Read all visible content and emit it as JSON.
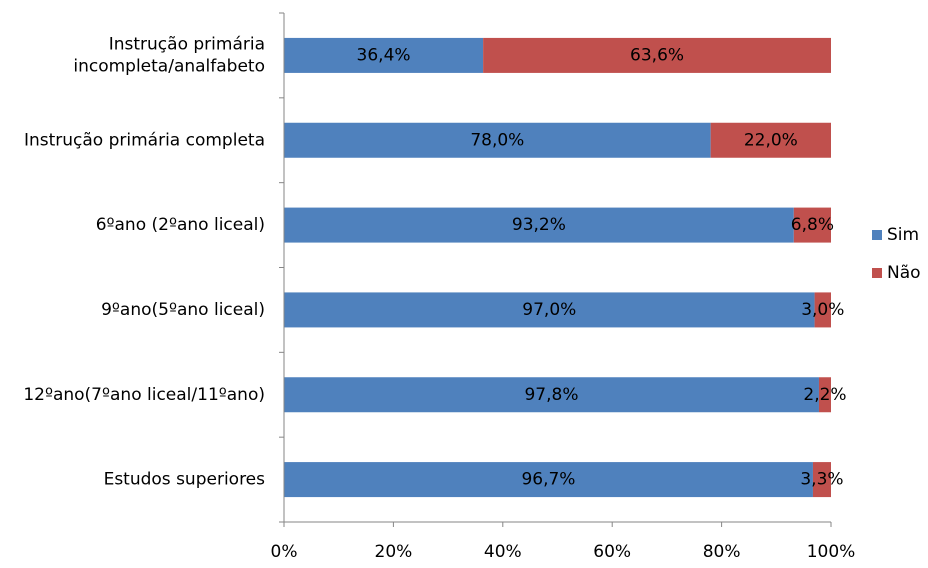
{
  "chart_data": {
    "type": "bar",
    "orientation": "horizontal",
    "stacked": "percent",
    "categories": [
      [
        "Instrução primária",
        "incompleta/analfabeto"
      ],
      [
        "Instrução primária completa"
      ],
      [
        "6ºano (2ºano liceal)"
      ],
      [
        "9ºano(5ºano liceal)"
      ],
      [
        "12ºano(7ºano liceal/11ºano)"
      ],
      [
        "Estudos superiores"
      ]
    ],
    "series": [
      {
        "name": "Sim",
        "color": "#4F81BD",
        "values": [
          36.4,
          78.0,
          93.2,
          97.0,
          97.8,
          96.7
        ],
        "labels": [
          "36,4%",
          "78,0%",
          "93,2%",
          "97,0%",
          "97,8%",
          "96,7%"
        ]
      },
      {
        "name": "Não",
        "color": "#C0504D",
        "values": [
          63.6,
          22.0,
          6.8,
          3.0,
          2.2,
          3.3
        ],
        "labels": [
          "63,6%",
          "22,0%",
          "6,8%",
          "3,0%",
          "2,2%",
          "3,3%"
        ]
      }
    ],
    "xlim": [
      0,
      100
    ],
    "xticks": [
      "0%",
      "20%",
      "40%",
      "60%",
      "80%",
      "100%"
    ],
    "grid": false,
    "legend": "right"
  }
}
